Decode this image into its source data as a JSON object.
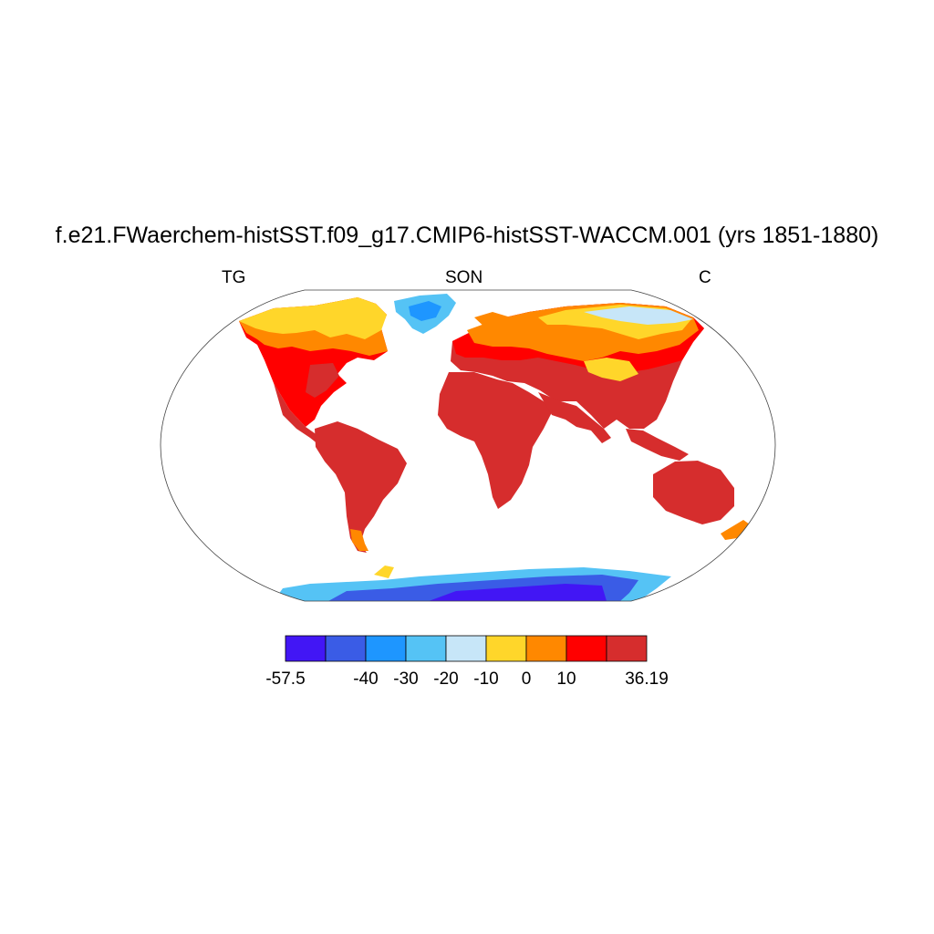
{
  "title": "f.e21.FWaerchem-histSST.f09_g17.CMIP6-histSST-WACCM.001 (yrs 1851-1880)",
  "subtitle_left": "TG",
  "subtitle_center": "SON",
  "subtitle_right": "C",
  "colorbar": {
    "colors": [
      "#4216f5",
      "#3a5ce6",
      "#1e96ff",
      "#55c3f5",
      "#c7e6f8",
      "#ffd62a",
      "#ff8800",
      "#ff0000",
      "#d62d2d"
    ],
    "boundaries": [
      -57.5,
      -50,
      -40,
      -30,
      -20,
      -10,
      0,
      10,
      20,
      36.19
    ],
    "tick_labels": [
      "-57.5",
      "-40",
      "-30",
      "-20",
      "-10",
      "0",
      "10",
      "36.19"
    ],
    "tick_values": [
      -57.5,
      -40,
      -30,
      -20,
      -10,
      0,
      10,
      36.19
    ]
  }
}
